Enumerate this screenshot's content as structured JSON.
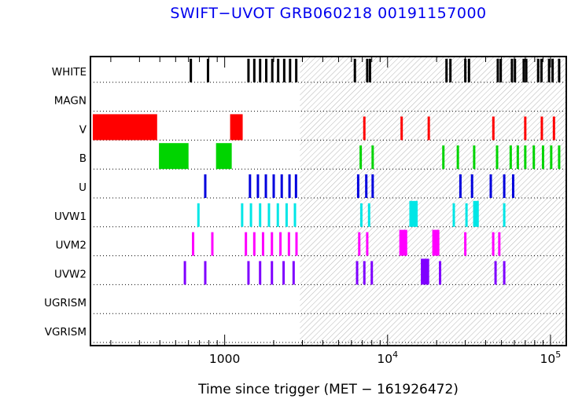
{
  "title": "SWIFT−UVOT GRB060218 00191157000",
  "xlabel": "Time since trigger (MET − 161926472)",
  "colors": {
    "title": "#0000ee",
    "frame": "#000000",
    "hatch": "#b5b5b5",
    "baseline": "#000000"
  },
  "chart_data": {
    "type": "timeline",
    "title": "SWIFT−UVOT GRB060218 00191157000",
    "xlabel": "Time since trigger (MET − 161926472)",
    "x_axis": {
      "scale": "log",
      "min": 150,
      "max": 125000,
      "major_ticks": [
        {
          "value": 1000,
          "label": "1000",
          "exp": ""
        },
        {
          "value": 10000,
          "label": "10",
          "exp": "4"
        },
        {
          "value": 100000,
          "label": "10",
          "exp": "5"
        }
      ]
    },
    "hatch_region": [
      2900,
      125000
    ],
    "rows": [
      {
        "label": "WHITE",
        "color": "#000000",
        "ticks": [
          620,
          790,
          1400,
          1520,
          1650,
          1800,
          1960,
          2130,
          2320,
          2520,
          2750,
          6300,
          7500,
          7800,
          23000,
          24300,
          30000,
          31600,
          47500,
          49500,
          58000,
          60500,
          68500,
          71000,
          84000,
          88000,
          98000,
          103000,
          113000
        ],
        "blocks": []
      },
      {
        "label": "MAGN",
        "color": "#000000",
        "ticks": [],
        "blocks": []
      },
      {
        "label": "V",
        "color": "#ff0000",
        "ticks": [
          7200,
          12200,
          17900,
          44600,
          70000,
          88500,
          105000
        ],
        "blocks": [
          [
            155,
            385
          ],
          [
            1080,
            1290
          ]
        ]
      },
      {
        "label": "B",
        "color": "#00d400",
        "ticks": [
          6840,
          8100,
          22000,
          27000,
          34000,
          47000,
          57000,
          63000,
          70000,
          79000,
          90000,
          101000,
          113000
        ],
        "blocks": [
          [
            395,
            600
          ],
          [
            885,
            1105
          ]
        ]
      },
      {
        "label": "U",
        "color": "#0000dd",
        "ticks": [
          760,
          1430,
          1600,
          1790,
          2000,
          2240,
          2500,
          2740,
          6600,
          7400,
          8100,
          28000,
          33000,
          43000,
          52000,
          59000
        ],
        "blocks": []
      },
      {
        "label": "UVW1",
        "color": "#00e6e6",
        "ticks": [
          690,
          1280,
          1450,
          1650,
          1870,
          2120,
          2400,
          2700,
          6900,
          7700,
          25500,
          30500,
          52000
        ],
        "blocks": [
          [
            13600,
            15300
          ],
          [
            33500,
            36300
          ]
        ]
      },
      {
        "label": "UVM2",
        "color": "#ff00ff",
        "ticks": [
          640,
          840,
          1350,
          1520,
          1720,
          1950,
          2200,
          2480,
          2760,
          6700,
          7500,
          30000,
          44500,
          48500
        ],
        "blocks": [
          [
            11800,
            13200
          ],
          [
            18800,
            20800
          ]
        ]
      },
      {
        "label": "UVW2",
        "color": "#7f00ff",
        "ticks": [
          570,
          760,
          1400,
          1650,
          1950,
          2300,
          2650,
          6500,
          7200,
          8000,
          21000,
          46000,
          52000
        ],
        "blocks": [
          [
            16000,
            18000
          ]
        ]
      },
      {
        "label": "UGRISM",
        "color": "#000000",
        "ticks": [],
        "blocks": []
      },
      {
        "label": "VGRISM",
        "color": "#000000",
        "ticks": [],
        "blocks": []
      }
    ]
  }
}
